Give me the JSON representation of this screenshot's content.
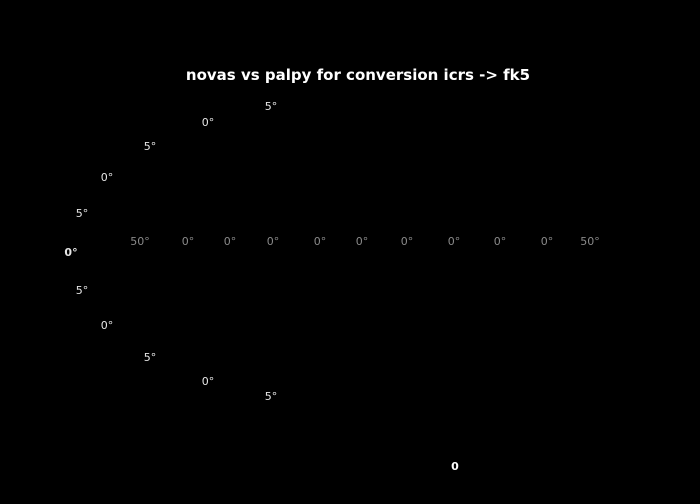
{
  "chart_data": {
    "type": "scatter",
    "title": "novas vs palpy for conversion icrs -> fk5",
    "projection": "aitoff",
    "background_color": "#000000",
    "text_color": "#ffffff",
    "grid": true,
    "longitude_tick_labels": [
      "50°",
      "0°",
      "0°",
      "0°",
      "0°",
      "0°",
      "0°",
      "0°",
      "0°",
      "0°",
      "50°"
    ],
    "latitude_tick_labels": {
      "upper": [
        "5°",
        "0°",
        "5°",
        "0°",
        "5°"
      ],
      "equator": "0°",
      "lower": [
        "5°",
        "0°",
        "5°",
        "0°",
        "5°"
      ]
    },
    "colorbar": {
      "tick_labels": [
        "",
        "",
        "",
        "0"
      ]
    },
    "series": []
  }
}
